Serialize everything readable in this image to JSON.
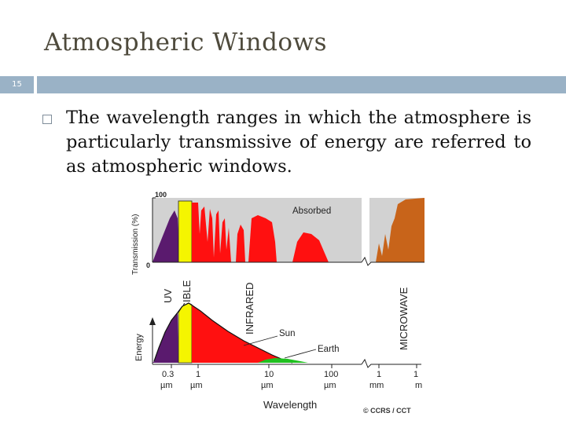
{
  "slide": {
    "title": "Atmospheric Windows",
    "number": "15",
    "bullet_text": "The wavelength ranges in which the atmosphere is particularly transmissive of energy are referred to as atmospheric windows."
  },
  "figure": {
    "top_panel": {
      "y_axis_label": "Transmission (%)",
      "y_max": "100",
      "y_min": "0",
      "absorbed_label": "Absorbed"
    },
    "band_labels": {
      "uv": "UV",
      "visible": "VISIBLE",
      "infrared": "INFRARED",
      "microwave": "MICROWAVE"
    },
    "bottom_panel": {
      "y_axis_label": "Energy",
      "sun_label": "Sun",
      "earth_label": "Earth"
    },
    "x_ticks": [
      {
        "value": "0.3",
        "unit": "µm"
      },
      {
        "value": "1",
        "unit": "µm"
      },
      {
        "value": "10",
        "unit": "µm"
      },
      {
        "value": "100",
        "unit": "µm"
      },
      {
        "value": "1",
        "unit": "mm"
      },
      {
        "value": "1",
        "unit": "m"
      }
    ],
    "x_axis_label": "Wavelength",
    "credit": "© CCRS / CCT",
    "colors": {
      "uv": "#5a1a6e",
      "visible": "#f5f500",
      "infrared": "#ff1010",
      "earth": "#20c020",
      "microwave": "#c8641a",
      "absorbed": "#d2d2d2"
    }
  }
}
